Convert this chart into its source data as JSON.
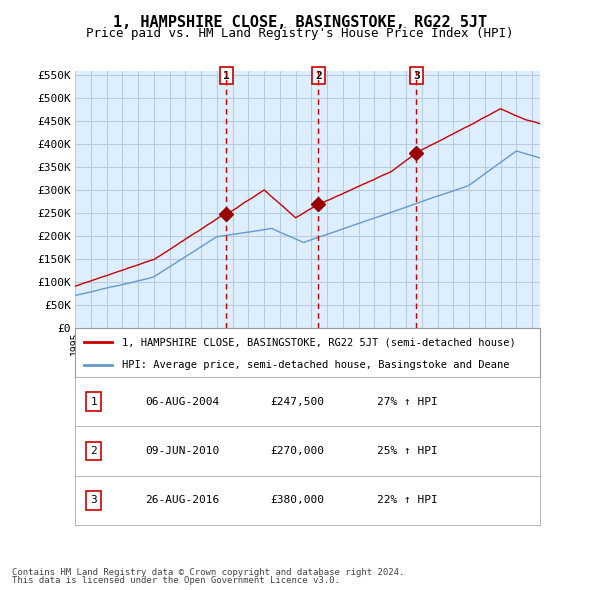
{
  "title": "1, HAMPSHIRE CLOSE, BASINGSTOKE, RG22 5JT",
  "subtitle": "Price paid vs. HM Land Registry's House Price Index (HPI)",
  "legend_line1": "1, HAMPSHIRE CLOSE, BASINGSTOKE, RG22 5JT (semi-detached house)",
  "legend_line2": "HPI: Average price, semi-detached house, Basingstoke and Deane",
  "footer1": "Contains HM Land Registry data © Crown copyright and database right 2024.",
  "footer2": "This data is licensed under the Open Government Licence v3.0.",
  "hpi_color": "#6699cc",
  "price_color": "#cc0000",
  "marker_color": "#990000",
  "vline_color": "#cc0000",
  "bg_color": "#ddeeff",
  "grid_color": "#bbccdd",
  "transactions": [
    {
      "num": 1,
      "date": "06-AUG-2004",
      "price": 247500,
      "hpi_pct": "27% ↑ HPI",
      "x": 2004.6
    },
    {
      "num": 2,
      "date": "09-JUN-2010",
      "price": 270000,
      "hpi_pct": "25% ↑ HPI",
      "x": 2010.44
    },
    {
      "num": 3,
      "date": "26-AUG-2016",
      "price": 380000,
      "hpi_pct": "22% ↑ HPI",
      "x": 2016.65
    }
  ],
  "ylim": [
    0,
    560000
  ],
  "xlim_start": 1995.0,
  "xlim_end": 2024.5,
  "yticks": [
    0,
    50000,
    100000,
    150000,
    200000,
    250000,
    300000,
    350000,
    400000,
    450000,
    500000,
    550000
  ],
  "ytick_labels": [
    "£0",
    "£50K",
    "£100K",
    "£150K",
    "£200K",
    "£250K",
    "£300K",
    "£350K",
    "£400K",
    "£450K",
    "£500K",
    "£550K"
  ]
}
